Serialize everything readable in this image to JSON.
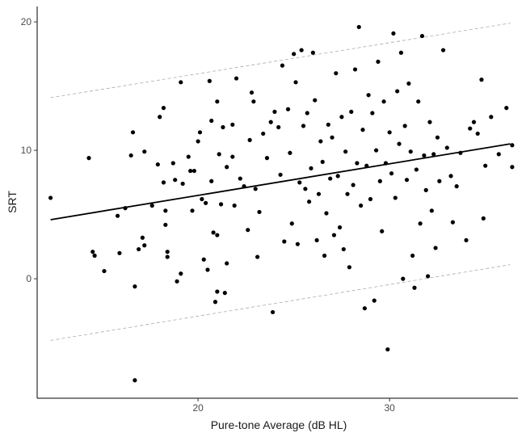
{
  "chart_data": {
    "type": "scatter",
    "xlabel": "Pure-tone Average (dB HL)",
    "ylabel": "SRT",
    "xlim": [
      11.6,
      36.7
    ],
    "ylim": [
      -9.3,
      21.2
    ],
    "x_ticks": [
      20,
      30
    ],
    "y_ticks": [
      0,
      10,
      20
    ],
    "grid": false,
    "legend": "none",
    "colors": {
      "points": "#000000",
      "fit": "#000000",
      "bands": "#aaaaaa"
    },
    "fit_line": {
      "x": [
        12.3,
        36.3
      ],
      "y": [
        4.6,
        10.5
      ]
    },
    "upper_band": {
      "x": [
        12.3,
        36.3
      ],
      "y": [
        14.1,
        19.9
      ]
    },
    "lower_band": {
      "x": [
        12.3,
        36.3
      ],
      "y": [
        -4.8,
        1.1
      ]
    },
    "points": [
      [
        12.3,
        6.3
      ],
      [
        14.3,
        9.4
      ],
      [
        14.5,
        2.1
      ],
      [
        14.6,
        1.8
      ],
      [
        15.1,
        0.6
      ],
      [
        15.8,
        4.9
      ],
      [
        15.9,
        2.0
      ],
      [
        16.2,
        5.5
      ],
      [
        16.5,
        9.6
      ],
      [
        16.6,
        11.4
      ],
      [
        16.7,
        -0.6
      ],
      [
        16.7,
        -7.9
      ],
      [
        16.9,
        2.3
      ],
      [
        17.1,
        3.2
      ],
      [
        17.2,
        9.9
      ],
      [
        17.2,
        2.6
      ],
      [
        17.6,
        5.7
      ],
      [
        17.9,
        8.9
      ],
      [
        18.0,
        12.6
      ],
      [
        18.2,
        13.3
      ],
      [
        18.2,
        7.5
      ],
      [
        18.3,
        5.3
      ],
      [
        18.3,
        4.2
      ],
      [
        18.4,
        2.1
      ],
      [
        18.4,
        1.7
      ],
      [
        18.7,
        9.0
      ],
      [
        18.8,
        7.7
      ],
      [
        18.9,
        -0.2
      ],
      [
        19.1,
        0.4
      ],
      [
        19.1,
        15.3
      ],
      [
        19.2,
        7.4
      ],
      [
        19.5,
        9.5
      ],
      [
        19.6,
        8.4
      ],
      [
        19.7,
        5.3
      ],
      [
        19.8,
        8.4
      ],
      [
        20.0,
        10.7
      ],
      [
        20.1,
        11.4
      ],
      [
        20.2,
        6.2
      ],
      [
        20.3,
        1.5
      ],
      [
        20.4,
        5.9
      ],
      [
        20.5,
        0.7
      ],
      [
        20.6,
        15.4
      ],
      [
        20.7,
        12.3
      ],
      [
        20.7,
        7.6
      ],
      [
        20.8,
        3.6
      ],
      [
        20.9,
        -1.8
      ],
      [
        21.0,
        13.8
      ],
      [
        21.0,
        3.4
      ],
      [
        21.0,
        -1.0
      ],
      [
        21.1,
        9.7
      ],
      [
        21.2,
        5.8
      ],
      [
        21.3,
        11.8
      ],
      [
        21.4,
        -1.1
      ],
      [
        21.5,
        8.7
      ],
      [
        21.5,
        1.2
      ],
      [
        21.8,
        12.0
      ],
      [
        21.8,
        9.5
      ],
      [
        21.9,
        5.7
      ],
      [
        22.0,
        15.6
      ],
      [
        22.2,
        7.8
      ],
      [
        22.4,
        7.2
      ],
      [
        22.6,
        3.8
      ],
      [
        22.7,
        10.8
      ],
      [
        22.8,
        14.5
      ],
      [
        22.9,
        13.8
      ],
      [
        23.0,
        7.0
      ],
      [
        23.1,
        1.7
      ],
      [
        23.2,
        5.2
      ],
      [
        23.4,
        11.3
      ],
      [
        23.6,
        9.4
      ],
      [
        23.8,
        12.2
      ],
      [
        23.9,
        -2.6
      ],
      [
        24.0,
        13.0
      ],
      [
        24.2,
        11.8
      ],
      [
        24.3,
        8.1
      ],
      [
        24.4,
        16.6
      ],
      [
        24.5,
        2.9
      ],
      [
        24.7,
        13.2
      ],
      [
        24.8,
        9.8
      ],
      [
        24.9,
        4.3
      ],
      [
        25.0,
        17.5
      ],
      [
        25.1,
        15.3
      ],
      [
        25.2,
        2.7
      ],
      [
        25.3,
        7.5
      ],
      [
        25.4,
        17.8
      ],
      [
        25.5,
        11.9
      ],
      [
        25.6,
        7.0
      ],
      [
        25.7,
        12.9
      ],
      [
        25.8,
        6.0
      ],
      [
        25.9,
        8.6
      ],
      [
        26.0,
        17.6
      ],
      [
        26.1,
        13.9
      ],
      [
        26.2,
        3.0
      ],
      [
        26.3,
        6.6
      ],
      [
        26.4,
        10.7
      ],
      [
        26.5,
        9.1
      ],
      [
        26.6,
        1.8
      ],
      [
        26.7,
        5.1
      ],
      [
        26.8,
        12.0
      ],
      [
        26.9,
        7.8
      ],
      [
        27.0,
        11.0
      ],
      [
        27.1,
        3.4
      ],
      [
        27.2,
        16.0
      ],
      [
        27.3,
        8.0
      ],
      [
        27.4,
        4.0
      ],
      [
        27.5,
        12.6
      ],
      [
        27.6,
        2.3
      ],
      [
        27.7,
        9.9
      ],
      [
        27.8,
        6.6
      ],
      [
        27.9,
        0.9
      ],
      [
        28.0,
        13.0
      ],
      [
        28.1,
        7.3
      ],
      [
        28.2,
        16.3
      ],
      [
        28.3,
        9.0
      ],
      [
        28.4,
        19.6
      ],
      [
        28.5,
        5.7
      ],
      [
        28.6,
        11.6
      ],
      [
        28.7,
        -2.3
      ],
      [
        28.8,
        8.8
      ],
      [
        28.9,
        14.3
      ],
      [
        29.0,
        6.2
      ],
      [
        29.1,
        12.9
      ],
      [
        29.2,
        -1.7
      ],
      [
        29.3,
        10.0
      ],
      [
        29.4,
        16.9
      ],
      [
        29.5,
        7.6
      ],
      [
        29.6,
        3.7
      ],
      [
        29.7,
        13.8
      ],
      [
        29.8,
        9.0
      ],
      [
        29.9,
        -5.5
      ],
      [
        30.0,
        11.4
      ],
      [
        30.1,
        8.2
      ],
      [
        30.2,
        19.1
      ],
      [
        30.3,
        6.3
      ],
      [
        30.4,
        14.6
      ],
      [
        30.5,
        10.5
      ],
      [
        30.6,
        17.6
      ],
      [
        30.7,
        0.0
      ],
      [
        30.8,
        11.9
      ],
      [
        30.9,
        7.7
      ],
      [
        31.0,
        15.2
      ],
      [
        31.1,
        9.9
      ],
      [
        31.2,
        1.8
      ],
      [
        31.3,
        -0.7
      ],
      [
        31.4,
        8.5
      ],
      [
        31.5,
        13.8
      ],
      [
        31.6,
        4.3
      ],
      [
        31.7,
        18.9
      ],
      [
        31.8,
        9.6
      ],
      [
        31.9,
        6.9
      ],
      [
        32.0,
        0.2
      ],
      [
        32.1,
        12.2
      ],
      [
        32.2,
        5.3
      ],
      [
        32.3,
        9.7
      ],
      [
        32.4,
        2.4
      ],
      [
        32.5,
        11.0
      ],
      [
        32.6,
        7.6
      ],
      [
        32.8,
        17.8
      ],
      [
        33.0,
        10.2
      ],
      [
        33.2,
        8.0
      ],
      [
        33.3,
        4.4
      ],
      [
        33.5,
        7.2
      ],
      [
        33.7,
        9.8
      ],
      [
        34.0,
        3.0
      ],
      [
        34.2,
        11.7
      ],
      [
        34.4,
        12.2
      ],
      [
        34.6,
        11.3
      ],
      [
        34.8,
        15.5
      ],
      [
        34.9,
        4.7
      ],
      [
        35.0,
        8.8
      ],
      [
        35.3,
        12.6
      ],
      [
        35.7,
        9.7
      ],
      [
        36.1,
        13.3
      ],
      [
        36.4,
        8.7
      ],
      [
        36.4,
        10.4
      ]
    ]
  }
}
